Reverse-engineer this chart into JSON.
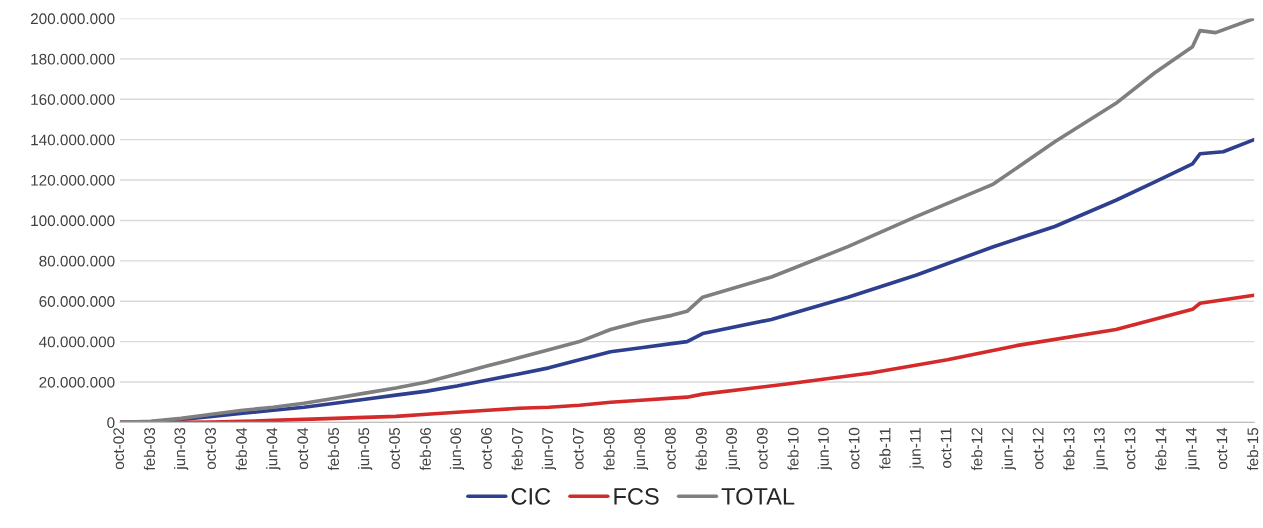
{
  "chart_data": {
    "type": "line",
    "series": [
      {
        "name": "CIC",
        "color": "#2e3f8f",
        "x": [
          "2002-10",
          "2003-02",
          "2003-06",
          "2003-10",
          "2004-02",
          "2004-06",
          "2004-10",
          "2005-02",
          "2005-06",
          "2005-10",
          "2006-02",
          "2006-06",
          "2006-10",
          "2007-02",
          "2007-06",
          "2007-10",
          "2008-02",
          "2008-06",
          "2008-10",
          "2008-12",
          "2009-02",
          "2009-11",
          "2010-09",
          "2011-06",
          "2012-04",
          "2012-12",
          "2013-08",
          "2014-01",
          "2014-06",
          "2014-07",
          "2014-10",
          "2015-02"
        ],
        "values": [
          0,
          300000,
          1500000,
          3000000,
          4500000,
          6000000,
          7500000,
          9500000,
          11500000,
          13500000,
          15500000,
          18000000,
          21000000,
          24000000,
          27000000,
          31000000,
          35000000,
          37000000,
          39000000,
          40000000,
          44000000,
          51000000,
          62000000,
          73000000,
          87000000,
          97000000,
          110000000,
          119000000,
          128000000,
          133000000,
          134000000,
          140000000
        ]
      },
      {
        "name": "FCS",
        "color": "#d42a2a",
        "x": [
          "2002-10",
          "2003-06",
          "2003-10",
          "2004-02",
          "2004-06",
          "2004-10",
          "2005-02",
          "2005-06",
          "2005-10",
          "2006-02",
          "2006-06",
          "2006-10",
          "2007-02",
          "2007-06",
          "2007-10",
          "2008-02",
          "2008-06",
          "2008-10",
          "2008-12",
          "2009-02",
          "2010-01",
          "2010-12",
          "2011-10",
          "2012-07",
          "2013-08",
          "2014-06",
          "2014-07",
          "2015-02"
        ],
        "values": [
          0,
          0,
          200000,
          500000,
          1000000,
          1500000,
          2000000,
          2500000,
          3000000,
          4000000,
          5000000,
          6000000,
          7000000,
          7500000,
          8500000,
          10000000,
          11000000,
          12000000,
          12500000,
          14000000,
          19000000,
          24500000,
          31000000,
          38000000,
          46000000,
          56000000,
          59000000,
          63000000
        ]
      },
      {
        "name": "TOTAL",
        "color": "#7f7f7f",
        "x": [
          "2002-10",
          "2003-02",
          "2003-06",
          "2003-10",
          "2004-02",
          "2004-06",
          "2004-10",
          "2005-02",
          "2005-06",
          "2005-10",
          "2006-02",
          "2006-06",
          "2006-10",
          "2007-02",
          "2007-06",
          "2007-10",
          "2008-02",
          "2008-06",
          "2008-10",
          "2008-12",
          "2009-02",
          "2009-11",
          "2010-09",
          "2011-06",
          "2012-04",
          "2012-12",
          "2013-08",
          "2014-01",
          "2014-06",
          "2014-07",
          "2014-09",
          "2015-02"
        ],
        "values": [
          0,
          500000,
          2000000,
          4000000,
          6000000,
          7500000,
          9500000,
          12000000,
          14500000,
          17000000,
          20000000,
          24000000,
          28000000,
          32000000,
          36000000,
          40000000,
          46000000,
          50000000,
          53000000,
          55000000,
          62000000,
          72000000,
          87000000,
          102000000,
          118000000,
          139000000,
          158000000,
          173000000,
          186000000,
          194000000,
          193000000,
          200000000
        ]
      }
    ],
    "xlim": [
      "2002-10",
      "2015-02"
    ],
    "xticks": [
      {
        "value": "2002-10",
        "label": "oct-02"
      },
      {
        "value": "2003-02",
        "label": "feb-03"
      },
      {
        "value": "2003-06",
        "label": "jun-03"
      },
      {
        "value": "2003-10",
        "label": "oct-03"
      },
      {
        "value": "2004-02",
        "label": "feb-04"
      },
      {
        "value": "2004-06",
        "label": "jun-04"
      },
      {
        "value": "2004-10",
        "label": "oct-04"
      },
      {
        "value": "2005-02",
        "label": "feb-05"
      },
      {
        "value": "2005-06",
        "label": "jun-05"
      },
      {
        "value": "2005-10",
        "label": "oct-05"
      },
      {
        "value": "2006-02",
        "label": "feb-06"
      },
      {
        "value": "2006-06",
        "label": "jun-06"
      },
      {
        "value": "2006-10",
        "label": "oct-06"
      },
      {
        "value": "2007-02",
        "label": "feb-07"
      },
      {
        "value": "2007-06",
        "label": "jun-07"
      },
      {
        "value": "2007-10",
        "label": "oct-07"
      },
      {
        "value": "2008-02",
        "label": "feb-08"
      },
      {
        "value": "2008-06",
        "label": "jun-08"
      },
      {
        "value": "2008-10",
        "label": "oct-08"
      },
      {
        "value": "2009-02",
        "label": "feb-09"
      },
      {
        "value": "2009-06",
        "label": "jun-09"
      },
      {
        "value": "2009-10",
        "label": "oct-09"
      },
      {
        "value": "2010-02",
        "label": "feb-10"
      },
      {
        "value": "2010-06",
        "label": "jun-10"
      },
      {
        "value": "2010-10",
        "label": "oct-10"
      },
      {
        "value": "2011-02",
        "label": "feb-11"
      },
      {
        "value": "2011-06",
        "label": "jun-11"
      },
      {
        "value": "2011-10",
        "label": "oct-11"
      },
      {
        "value": "2012-02",
        "label": "feb-12"
      },
      {
        "value": "2012-06",
        "label": "jun-12"
      },
      {
        "value": "2012-10",
        "label": "oct-12"
      },
      {
        "value": "2013-02",
        "label": "feb-13"
      },
      {
        "value": "2013-06",
        "label": "jun-13"
      },
      {
        "value": "2013-10",
        "label": "oct-13"
      },
      {
        "value": "2014-02",
        "label": "feb-14"
      },
      {
        "value": "2014-06",
        "label": "jun-14"
      },
      {
        "value": "2014-10",
        "label": "oct-14"
      },
      {
        "value": "2015-02",
        "label": "feb-15"
      }
    ],
    "ylim": [
      0,
      200000000
    ],
    "yticks": [
      {
        "value": 0,
        "label": "0"
      },
      {
        "value": 20000000,
        "label": "20.000.000"
      },
      {
        "value": 40000000,
        "label": "40.000.000"
      },
      {
        "value": 60000000,
        "label": "60.000.000"
      },
      {
        "value": 80000000,
        "label": "80.000.000"
      },
      {
        "value": 100000000,
        "label": "100.000.000"
      },
      {
        "value": 120000000,
        "label": "120.000.000"
      },
      {
        "value": 140000000,
        "label": "140.000.000"
      },
      {
        "value": 160000000,
        "label": "160.000.000"
      },
      {
        "value": 180000000,
        "label": "180.000.000"
      },
      {
        "value": 200000000,
        "label": "200.000.000"
      }
    ],
    "grid": "y",
    "legend": "bottom",
    "marker": "none",
    "line_style": "solid"
  }
}
